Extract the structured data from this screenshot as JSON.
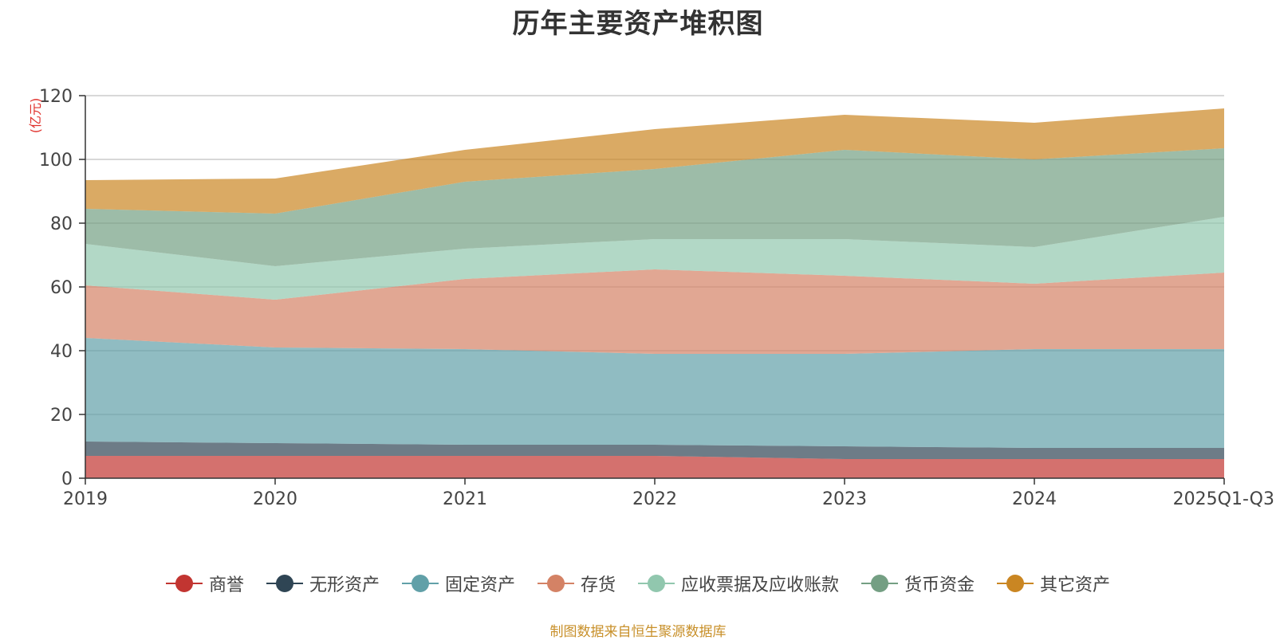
{
  "chart_data": {
    "type": "area",
    "stacked": true,
    "title": "历年主要资产堆积图",
    "ylabel": "(亿元)",
    "xlabel": "",
    "ylim": [
      0,
      120
    ],
    "yticks": [
      0,
      20,
      40,
      60,
      80,
      100,
      120
    ],
    "categories": [
      "2019",
      "2020",
      "2021",
      "2022",
      "2023",
      "2024",
      "2025Q1-Q3"
    ],
    "series": [
      {
        "name": "商誉",
        "color": "#c23531",
        "values": [
          7.0,
          7.0,
          7.0,
          7.0,
          6.0,
          6.0,
          6.0
        ]
      },
      {
        "name": "无形资产",
        "color": "#2f4554",
        "values": [
          4.5,
          4.0,
          3.5,
          3.5,
          4.0,
          3.5,
          3.5
        ]
      },
      {
        "name": "固定资产",
        "color": "#61a0a8",
        "values": [
          32.5,
          30.0,
          30.0,
          28.5,
          29.0,
          31.0,
          31.0
        ]
      },
      {
        "name": "存货",
        "color": "#d48265",
        "values": [
          16.5,
          15.0,
          22.0,
          26.5,
          24.5,
          20.5,
          24.0
        ]
      },
      {
        "name": "应收票据及应收账款",
        "color": "#91c7ae",
        "values": [
          13.0,
          10.5,
          9.5,
          9.5,
          11.5,
          11.5,
          17.5
        ]
      },
      {
        "name": "货币资金",
        "color": "#749f83",
        "values": [
          11.0,
          16.5,
          21.0,
          22.0,
          28.0,
          27.5,
          21.5
        ]
      },
      {
        "name": "其它资产",
        "color": "#ca8622",
        "values": [
          9.0,
          11.0,
          10.0,
          12.5,
          11.0,
          11.5,
          12.5
        ]
      }
    ],
    "legend_position": "bottom-center",
    "grid": true
  },
  "source_note": "制图数据来自恒生聚源数据库"
}
